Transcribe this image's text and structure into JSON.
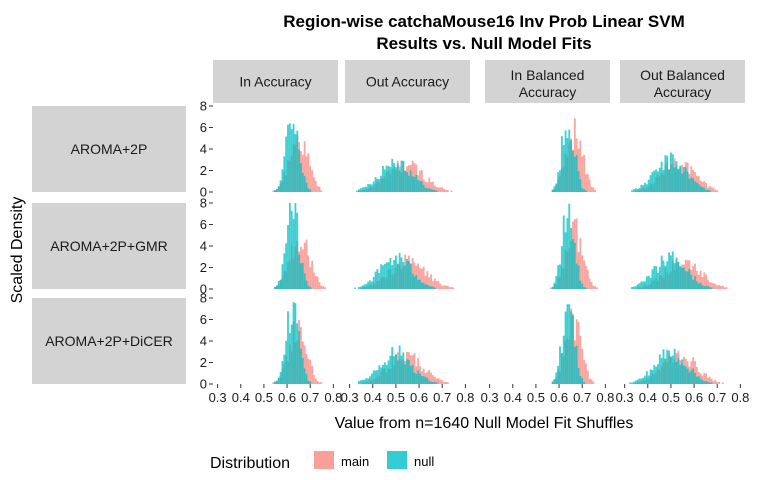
{
  "chart_data": {
    "type": "histogram",
    "title_lines": [
      "Region-wise catchaMouse16 Inv Prob Linear SVM",
      "Results vs. Null Model Fits"
    ],
    "xlabel": "Value from n=1640 Null Model Fit Shuffles",
    "ylabel": "Scaled Density",
    "columns": [
      "In Accuracy",
      "Out Accuracy",
      "In Balanced Accuracy",
      "Out Balanced Accuracy"
    ],
    "rows": [
      "AROMA+2P",
      "AROMA+2P+GMR",
      "AROMA+2P+DiCER"
    ],
    "xlim": [
      0.28,
      0.82
    ],
    "ylim": [
      0,
      8
    ],
    "x_ticks": [
      "0.3",
      "0.4",
      "0.5",
      "0.6",
      "0.7",
      "0.8"
    ],
    "y_ticks": [
      "0",
      "2",
      "4",
      "6",
      "8"
    ],
    "legend": {
      "title": "Distribution",
      "entries": [
        {
          "name": "main",
          "color": "#F8766D"
        },
        {
          "name": "null",
          "color": "#00BFC4"
        }
      ]
    },
    "panels": [
      {
        "row": "AROMA+2P",
        "column": "In Accuracy",
        "null": {
          "mean": 0.625,
          "sd": 0.028
        },
        "main": {
          "mean": 0.65,
          "sd": 0.04
        }
      },
      {
        "row": "AROMA+2P",
        "column": "Out Accuracy",
        "null": {
          "mean": 0.5,
          "sd": 0.07
        },
        "main": {
          "mean": 0.54,
          "sd": 0.08
        }
      },
      {
        "row": "AROMA+2P",
        "column": "In Balanced Accuracy",
        "null": {
          "mean": 0.64,
          "sd": 0.026
        },
        "main": {
          "mean": 0.665,
          "sd": 0.036
        }
      },
      {
        "row": "AROMA+2P",
        "column": "Out Balanced Accuracy",
        "null": {
          "mean": 0.5,
          "sd": 0.07
        },
        "main": {
          "mean": 0.53,
          "sd": 0.075
        }
      },
      {
        "row": "AROMA+2P+GMR",
        "column": "In Accuracy",
        "null": {
          "mean": 0.625,
          "sd": 0.028
        },
        "main": {
          "mean": 0.655,
          "sd": 0.042
        }
      },
      {
        "row": "AROMA+2P+GMR",
        "column": "Out Accuracy",
        "null": {
          "mean": 0.5,
          "sd": 0.07
        },
        "main": {
          "mean": 0.55,
          "sd": 0.08
        }
      },
      {
        "row": "AROMA+2P+GMR",
        "column": "In Balanced Accuracy",
        "null": {
          "mean": 0.64,
          "sd": 0.026
        },
        "main": {
          "mean": 0.665,
          "sd": 0.036
        }
      },
      {
        "row": "AROMA+2P+GMR",
        "column": "Out Balanced Accuracy",
        "null": {
          "mean": 0.5,
          "sd": 0.07
        },
        "main": {
          "mean": 0.55,
          "sd": 0.08
        }
      },
      {
        "row": "AROMA+2P+DiCER",
        "column": "In Accuracy",
        "null": {
          "mean": 0.625,
          "sd": 0.028
        },
        "main": {
          "mean": 0.645,
          "sd": 0.038
        }
      },
      {
        "row": "AROMA+2P+DiCER",
        "column": "Out Accuracy",
        "null": {
          "mean": 0.5,
          "sd": 0.07
        },
        "main": {
          "mean": 0.54,
          "sd": 0.075
        }
      },
      {
        "row": "AROMA+2P+DiCER",
        "column": "In Balanced Accuracy",
        "null": {
          "mean": 0.64,
          "sd": 0.026
        },
        "main": {
          "mean": 0.66,
          "sd": 0.035
        }
      },
      {
        "row": "AROMA+2P+DiCER",
        "column": "Out Balanced Accuracy",
        "null": {
          "mean": 0.5,
          "sd": 0.07
        },
        "main": {
          "mean": 0.535,
          "sd": 0.075
        }
      }
    ]
  }
}
